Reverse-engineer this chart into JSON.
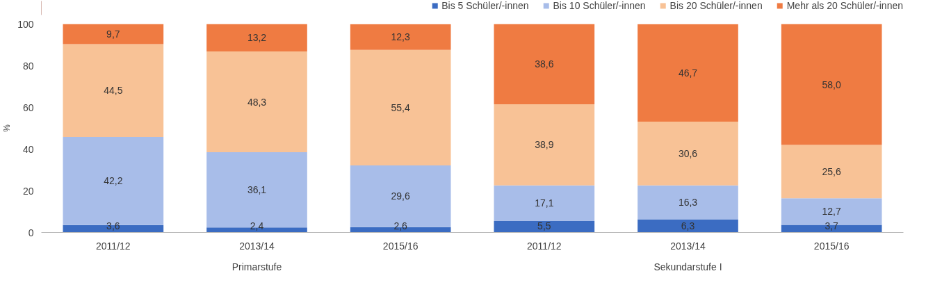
{
  "chart_data": {
    "type": "bar",
    "stacked": true,
    "ylabel": "%",
    "categories": [
      "2011/12",
      "2013/14",
      "2015/16",
      "2011/12",
      "2013/14",
      "2015/16"
    ],
    "series": [
      {
        "name": "Bis 5 Schüler/-innen",
        "color": "#3b6cc2",
        "values": [
          3.6,
          2.4,
          2.6,
          5.5,
          6.3,
          3.7
        ],
        "value_labels": [
          "3,6",
          "2,4",
          "2,6",
          "5,5",
          "6,3",
          "3,7"
        ]
      },
      {
        "name": "Bis 10 Schüler/-innen",
        "color": "#a8bde9",
        "values": [
          42.2,
          36.1,
          29.6,
          17.1,
          16.3,
          12.7
        ],
        "value_labels": [
          "42,2",
          "36,1",
          "29,6",
          "17,1",
          "16,3",
          "12,7"
        ]
      },
      {
        "name": "Bis 20 Schüler/-innen",
        "color": "#f8c296",
        "values": [
          44.5,
          48.3,
          55.4,
          38.9,
          30.6,
          25.6
        ],
        "value_labels": [
          "44,5",
          "48,3",
          "55,4",
          "38,9",
          "30,6",
          "25,6"
        ]
      },
      {
        "name": "Mehr als 20 Schüler/-innen",
        "color": "#ef7b42",
        "values": [
          9.7,
          13.2,
          12.3,
          38.6,
          46.7,
          58.0
        ],
        "value_labels": [
          "9,7",
          "13,2",
          "12,3",
          "38,6",
          "46,7",
          "58,0"
        ]
      }
    ],
    "ylim": [
      0,
      100
    ],
    "yticks": [
      0,
      20,
      40,
      60,
      80,
      100
    ],
    "grid": false,
    "legend": "top right",
    "annotations": [
      "Primarstufe",
      "Sekundarstufe I"
    ]
  }
}
